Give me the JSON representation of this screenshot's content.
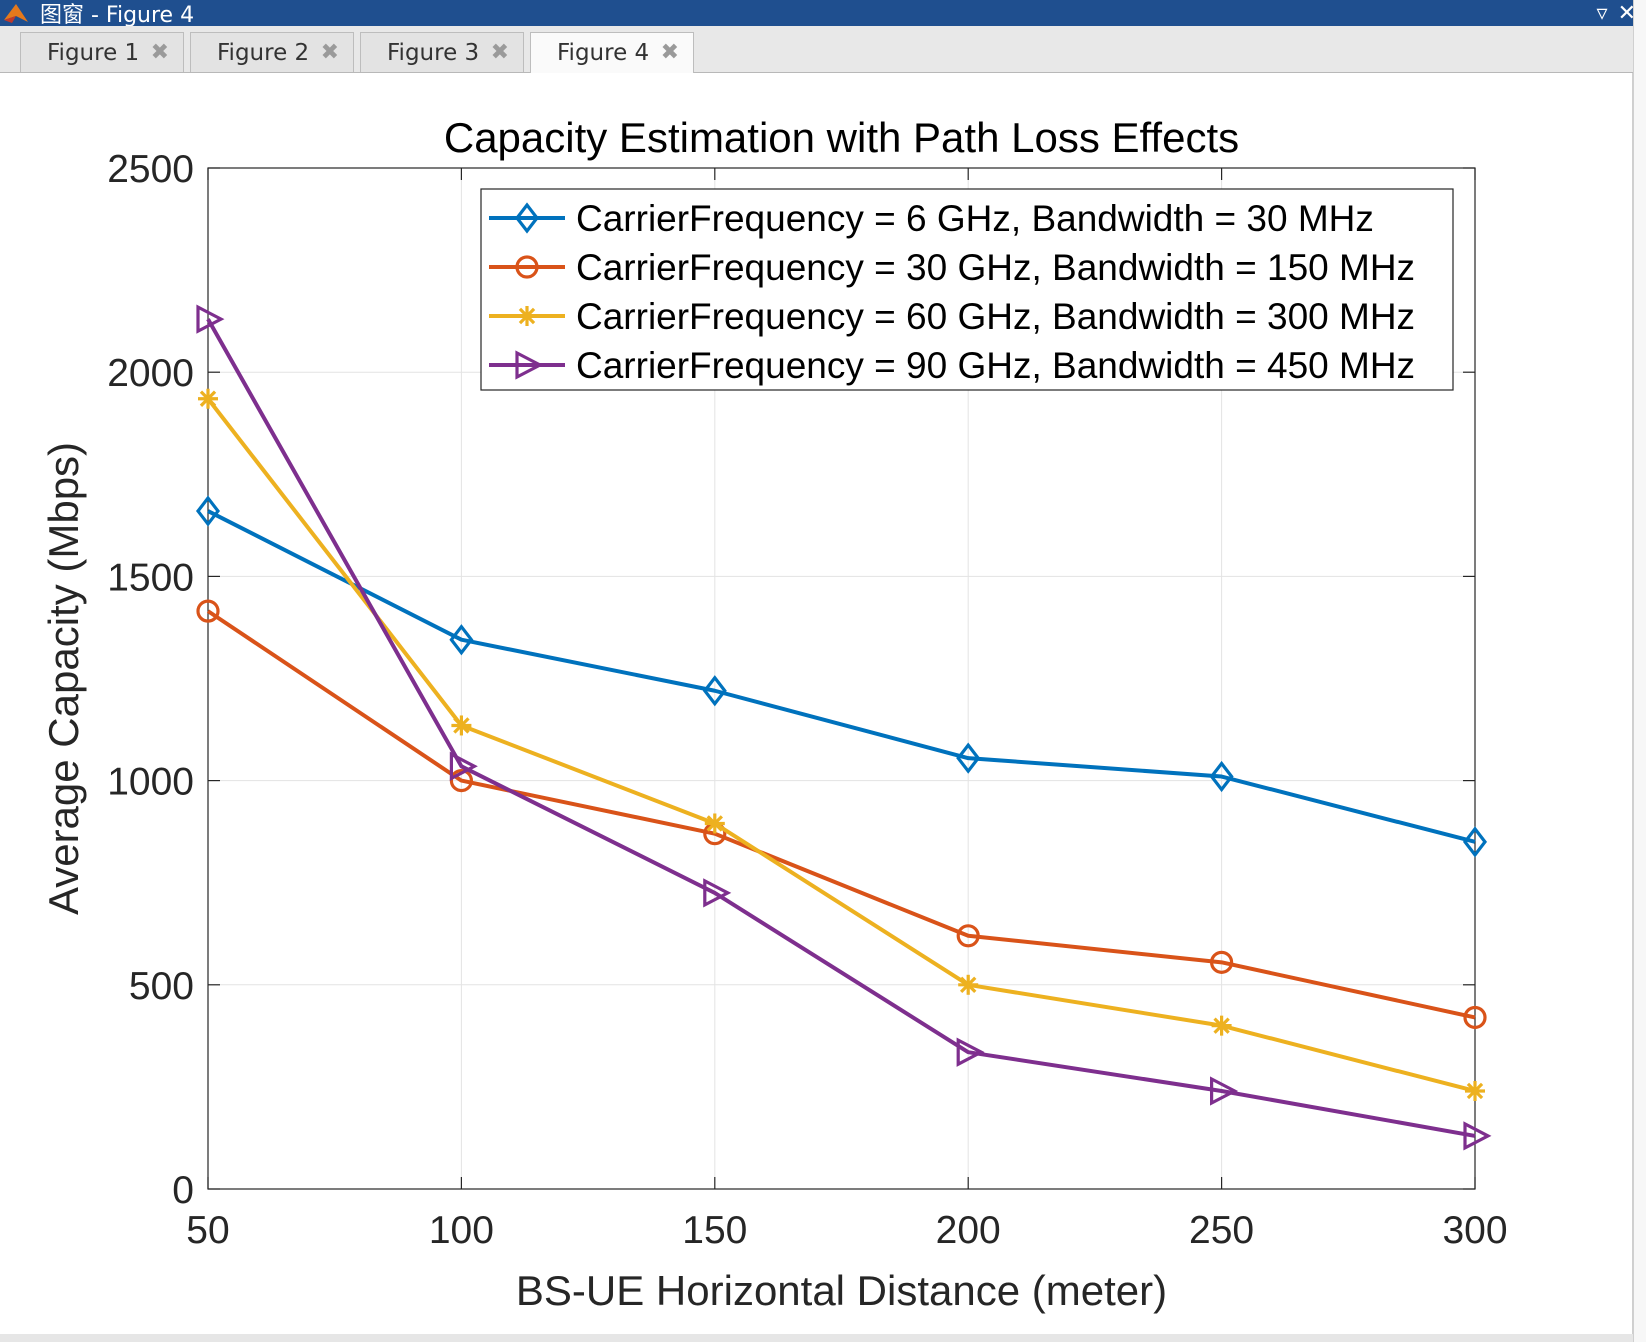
{
  "window": {
    "title": "图窗 - Figure 4",
    "controls": [
      "dropdown-icon",
      "close-icon"
    ]
  },
  "tabs": [
    {
      "label": "Figure 1",
      "active": false
    },
    {
      "label": "Figure 2",
      "active": false
    },
    {
      "label": "Figure 3",
      "active": false
    },
    {
      "label": "Figure 4",
      "active": true
    }
  ],
  "chart_data": {
    "type": "line",
    "title": "Capacity Estimation with Path Loss Effects",
    "xlabel": "BS-UE Horizontal Distance (meter)",
    "ylabel": "Average Capacity (Mbps)",
    "xlim": [
      50,
      300
    ],
    "ylim": [
      0,
      2500
    ],
    "xticks": [
      50,
      100,
      150,
      200,
      250,
      300
    ],
    "yticks": [
      0,
      500,
      1000,
      1500,
      2000,
      2500
    ],
    "grid": true,
    "legend_location": "top-right",
    "x": [
      50,
      100,
      150,
      200,
      250,
      300
    ],
    "series": [
      {
        "name": "CarrierFrequency = 6 GHz, Bandwidth = 30 MHz",
        "color": "#0072bd",
        "marker": "diamond",
        "values": [
          1660,
          1345,
          1220,
          1055,
          1010,
          850
        ]
      },
      {
        "name": "CarrierFrequency = 30 GHz, Bandwidth = 150 MHz",
        "color": "#d95319",
        "marker": "circle",
        "values": [
          1415,
          1000,
          870,
          620,
          555,
          420
        ]
      },
      {
        "name": "CarrierFrequency = 60 GHz, Bandwidth = 300 MHz",
        "color": "#edb120",
        "marker": "asterisk",
        "values": [
          1935,
          1135,
          895,
          500,
          400,
          240
        ]
      },
      {
        "name": "CarrierFrequency = 90 GHz, Bandwidth = 450 MHz",
        "color": "#7e2f8e",
        "marker": "triangle-right",
        "values": [
          2130,
          1035,
          725,
          335,
          240,
          130
        ]
      }
    ]
  }
}
